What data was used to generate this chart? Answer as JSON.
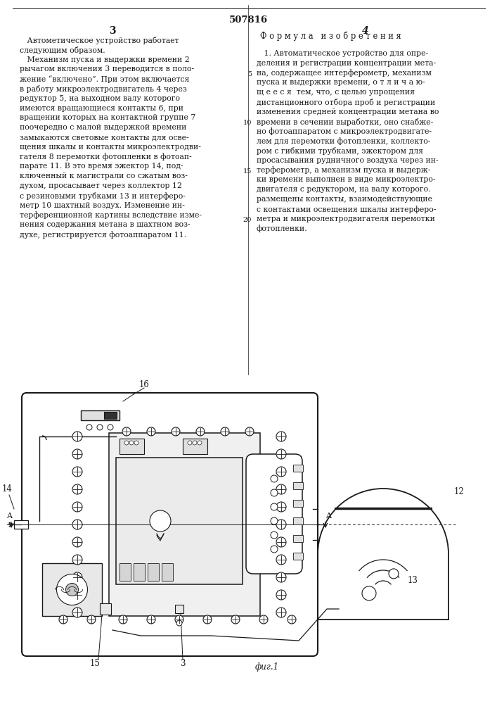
{
  "page_number": "507816",
  "left_col_number": "3",
  "right_col_number": "4",
  "left_col_text": [
    "   Автометическое устройство работает",
    "следующим образом.",
    "   Механизм пуска и выдержки времени 2",
    "рычагом включения 3 переводится в поло-",
    "жение “включено”. При этом включается",
    "в работу микроэлектродвигатель 4 через",
    "редуктор 5, на выходном валу которого",
    "имеются вращающиеся контакты 6, при",
    "вращении которых на контактной группе 7",
    "поочередно с малой выдержкой времени",
    "замыкаются световые контакты для осве-",
    "щения шкалы и контакты микроэлектродви-",
    "гателя 8 перемотки фотопленки в фотоап-",
    "парате 11. В это время эжектор 14, под-",
    "ключенный к магистрали со сжатым воз-",
    "духом, просасывает через коллектор 12",
    "с резиновыми трубками 13 и интерферо-",
    "метр 10 шахтный воздух. Изменение ин-",
    "терференционной картины вследствие изме-",
    "нения содержания метана в шахтном воз-",
    "духе, регистрируется фотоаппаратом 11."
  ],
  "right_col_header": "Ф о р м у л а   и з о б р е т е н и я",
  "right_col_text": [
    "   1. Автоматическое устройство для опре-",
    "деления и регистрации концентрации мета-",
    "на, содержащее интерферометр, механизм",
    "пуска и выдержки времени, о т л и ч а ю-",
    "щ е е с я  тем, что, с целью упрощения",
    "дистанционного отбора проб и регистрации",
    "изменения средней концентрации метана во",
    "времени в сечении выработки, оно снабже-",
    "но фотоаппаратом с микроэлектродвигате-",
    "лем для перемотки фотопленки, коллекто-",
    "ром с гибкими трубками, эжектором для",
    "просасывания рудничного воздуха через ин-",
    "терферометр, а механизм пуска и выдерж-",
    "ки времени выполнен в виде микроэлектро-",
    "двигателя с редуктором, на валу которого.",
    "размещены контакты, взаимодействующие",
    "с контактами освещения шкалы интерферо-",
    "метра и микроэлектродвигателя перемотки",
    "фотопленки."
  ],
  "line_numbers_right": {
    "5": 3,
    "10": 8,
    "15": 13,
    "20": 18
  },
  "fig_label": "фиг.1",
  "background_color": "#ffffff",
  "text_color": "#1a1a1a",
  "line_color": "#1a1a1a"
}
